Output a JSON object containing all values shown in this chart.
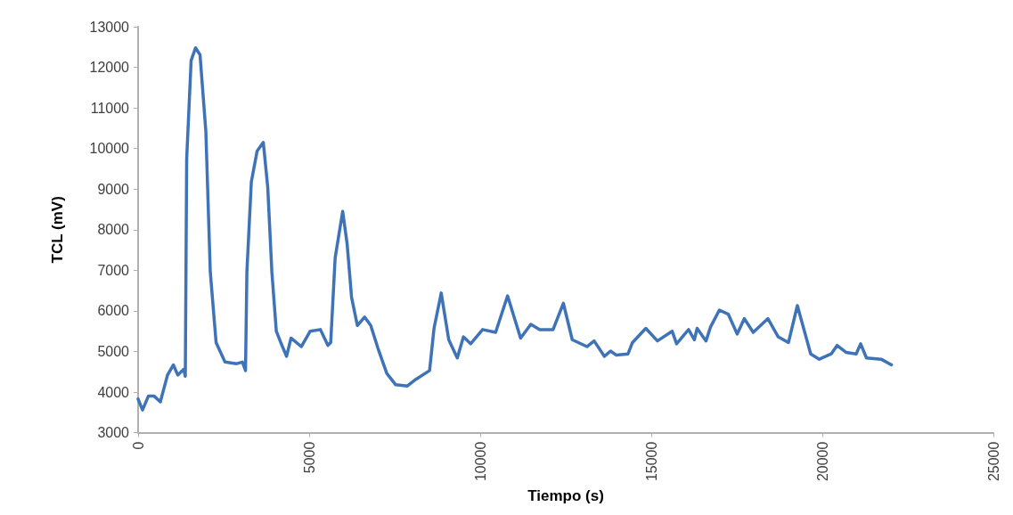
{
  "chart_data": {
    "type": "line",
    "xlabel": "Tiempo (s)",
    "ylabel": "TCL (mV)",
    "xlim": [
      0,
      25000
    ],
    "xticks": [
      0,
      5000,
      10000,
      15000,
      20000,
      25000
    ],
    "ylim": [
      3000,
      13000
    ],
    "yticks": [
      3000,
      4000,
      5000,
      6000,
      7000,
      8000,
      9000,
      10000,
      11000,
      12000,
      13000
    ],
    "grid": false,
    "marker": "none",
    "line_style": "solid",
    "series": [
      {
        "color": "#3f73b8",
        "x": [
          0,
          130,
          300,
          470,
          650,
          860,
          1030,
          1160,
          1330,
          1380,
          1420,
          1550,
          1680,
          1810,
          1980,
          2110,
          2280,
          2540,
          2880,
          3050,
          3140,
          3180,
          3310,
          3480,
          3660,
          3790,
          3910,
          4040,
          4170,
          4340,
          4470,
          4770,
          5030,
          5330,
          5550,
          5630,
          5760,
          5980,
          6110,
          6240,
          6410,
          6620,
          6800,
          7010,
          7270,
          7530,
          7870,
          8130,
          8520,
          8650,
          8860,
          9080,
          9330,
          9510,
          9720,
          10070,
          10450,
          10800,
          11180,
          11480,
          11740,
          12130,
          12430,
          12690,
          13120,
          13330,
          13630,
          13810,
          13980,
          14320,
          14450,
          14840,
          15180,
          15610,
          15740,
          16090,
          16260,
          16340,
          16600,
          16730,
          16990,
          17250,
          17510,
          17720,
          17980,
          18410,
          18710,
          19010,
          19270,
          19660,
          19910,
          20260,
          20430,
          20690,
          20990,
          21120,
          21290,
          21720,
          22020
        ],
        "values": [
          3830,
          3560,
          3900,
          3900,
          3760,
          4420,
          4670,
          4420,
          4560,
          4390,
          9740,
          12170,
          12480,
          12310,
          10430,
          6960,
          5220,
          4740,
          4700,
          4740,
          4530,
          6960,
          9180,
          9940,
          10150,
          9040,
          6960,
          5500,
          5220,
          4880,
          5330,
          5120,
          5500,
          5540,
          5150,
          5220,
          7310,
          8450,
          7650,
          6330,
          5640,
          5850,
          5640,
          5080,
          4460,
          4180,
          4150,
          4320,
          4530,
          5570,
          6440,
          5290,
          4840,
          5360,
          5190,
          5540,
          5470,
          6370,
          5330,
          5670,
          5540,
          5540,
          6190,
          5290,
          5120,
          5260,
          4880,
          5010,
          4910,
          4940,
          5220,
          5570,
          5260,
          5500,
          5190,
          5540,
          5290,
          5570,
          5260,
          5600,
          6020,
          5920,
          5430,
          5810,
          5470,
          5810,
          5360,
          5220,
          6130,
          4940,
          4810,
          4940,
          5150,
          4980,
          4940,
          5190,
          4840,
          4810,
          4670
        ]
      }
    ]
  }
}
